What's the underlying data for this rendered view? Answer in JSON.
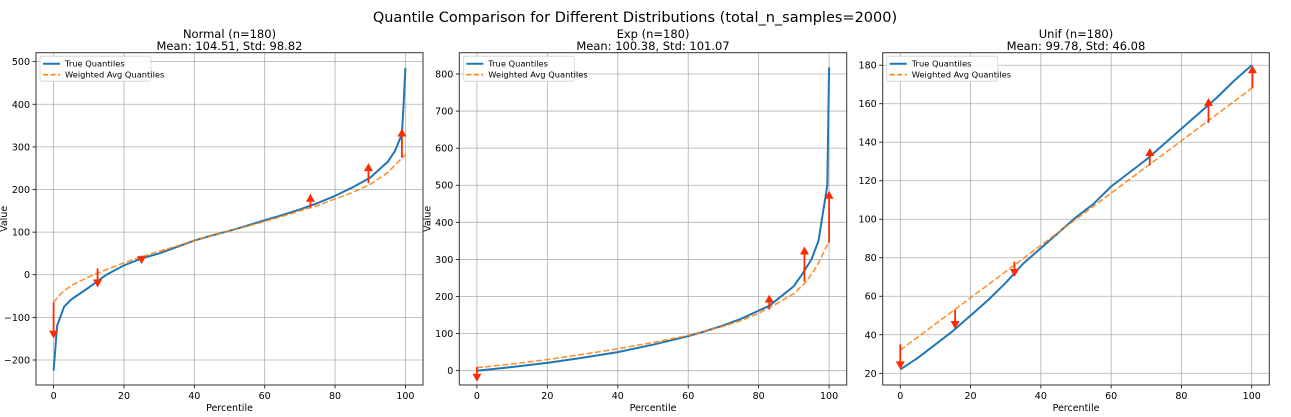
{
  "figure": {
    "suptitle": "Quantile Comparison for Different Distributions (total_n_samples=2000)"
  },
  "colors": {
    "true": "#1f77b4",
    "weighted": "#ff7f0e",
    "arrow": "#ff2a00",
    "grid": "#b0b0b0"
  },
  "chart_data": [
    {
      "type": "line",
      "title": "Normal (n=180)",
      "subtitle": "Mean: 104.51, Std: 98.82",
      "xlabel": "Percentile",
      "ylabel": "Value",
      "xlim": [
        -5,
        105
      ],
      "ylim": [
        -258.7,
        521
      ],
      "xticks": [
        0,
        20,
        40,
        60,
        80,
        100
      ],
      "yticks": [
        -200,
        -100,
        0,
        100,
        200,
        300,
        400,
        500
      ],
      "yticklabels": [
        "−200",
        "−100",
        "0",
        "100",
        "200",
        "300",
        "400",
        "500"
      ],
      "grid": true,
      "legend": "upper-left",
      "series": [
        {
          "name": "True Quantiles",
          "style": "solid",
          "x": [
            0,
            1,
            3,
            5,
            10,
            15,
            20,
            25,
            30,
            35,
            40,
            45,
            50,
            55,
            60,
            65,
            70,
            75,
            80,
            85,
            90,
            95,
            97,
            99,
            99.5,
            100
          ],
          "y": [
            -225,
            -120,
            -75,
            -58,
            -30,
            0,
            22,
            38,
            50,
            65,
            80,
            92,
            103,
            115,
            128,
            140,
            153,
            168,
            185,
            205,
            228,
            265,
            290,
            330,
            400,
            485
          ]
        },
        {
          "name": "Weighted Avg Quantiles",
          "style": "dashed",
          "x": [
            0,
            2,
            5,
            10,
            15,
            20,
            25,
            30,
            35,
            40,
            45,
            50,
            55,
            60,
            65,
            70,
            75,
            80,
            85,
            90,
            95,
            100
          ],
          "y": [
            -65,
            -45,
            -25,
            -5,
            12,
            28,
            42,
            55,
            67,
            80,
            92,
            103,
            114,
            125,
            137,
            150,
            162,
            178,
            193,
            212,
            240,
            282
          ]
        }
      ],
      "arrows": [
        {
          "x": 0,
          "from": -65,
          "to": -150
        },
        {
          "x": 12.5,
          "from": 15,
          "to": -30
        },
        {
          "x": 25,
          "from": 45,
          "to": 25
        },
        {
          "x": 73,
          "from": 158,
          "to": 190
        },
        {
          "x": 89.5,
          "from": 215,
          "to": 262
        },
        {
          "x": 99,
          "from": 275,
          "to": 343
        }
      ]
    },
    {
      "type": "line",
      "title": "Exp (n=180)",
      "subtitle": "Mean: 100.38, Std: 101.07",
      "xlabel": "Percentile",
      "ylabel": "Value",
      "xlim": [
        -5,
        105
      ],
      "ylim": [
        -38.6,
        857.4
      ],
      "xticks": [
        0,
        20,
        40,
        60,
        80,
        100
      ],
      "yticks": [
        0,
        100,
        200,
        300,
        400,
        500,
        600,
        700,
        800
      ],
      "yticklabels": [
        "0",
        "100",
        "200",
        "300",
        "400",
        "500",
        "600",
        "700",
        "800"
      ],
      "grid": true,
      "legend": "upper-left",
      "series": [
        {
          "name": "True Quantiles",
          "style": "solid",
          "x": [
            0,
            10,
            20,
            30,
            40,
            50,
            60,
            65,
            70,
            75,
            80,
            83,
            85,
            87,
            90,
            92,
            95,
            97,
            98,
            99,
            99.5,
            100
          ],
          "y": [
            0,
            10,
            21,
            35,
            50,
            70,
            93,
            107,
            122,
            140,
            162,
            175,
            190,
            205,
            228,
            255,
            300,
            350,
            410,
            470,
            500,
            818
          ]
        },
        {
          "name": "Weighted Avg Quantiles",
          "style": "dashed",
          "x": [
            0,
            10,
            20,
            30,
            40,
            50,
            60,
            70,
            75,
            80,
            85,
            90,
            93,
            95,
            97,
            99,
            100
          ],
          "y": [
            8,
            18,
            30,
            44,
            59,
            76,
            95,
            120,
            135,
            155,
            180,
            208,
            235,
            260,
            290,
            330,
            348
          ]
        }
      ],
      "arrows": [
        {
          "x": 0,
          "from": 10,
          "to": -30
        },
        {
          "x": 83,
          "from": 165,
          "to": 205
        },
        {
          "x": 93,
          "from": 240,
          "to": 335
        },
        {
          "x": 100,
          "from": 345,
          "to": 485
        }
      ]
    },
    {
      "type": "line",
      "title": "Unif (n=180)",
      "subtitle": "Mean: 99.78, Std: 46.08",
      "xlabel": "Percentile",
      "ylabel": "",
      "xlim": [
        -5,
        105
      ],
      "ylim": [
        13.9,
        186.5
      ],
      "xticks": [
        0,
        20,
        40,
        60,
        80,
        100
      ],
      "yticks": [
        20,
        40,
        60,
        80,
        100,
        120,
        140,
        160,
        180
      ],
      "yticklabels": [
        "20",
        "40",
        "60",
        "80",
        "100",
        "120",
        "140",
        "160",
        "180"
      ],
      "grid": true,
      "legend": "upper-left",
      "series": [
        {
          "name": "True Quantiles",
          "style": "solid",
          "x": [
            0,
            5,
            10,
            15,
            20,
            25,
            30,
            35,
            40,
            45,
            50,
            55,
            60,
            65,
            70,
            75,
            80,
            85,
            90,
            95,
            100
          ],
          "y": [
            22,
            28,
            35,
            42,
            50,
            58,
            67,
            77,
            85,
            93,
            101,
            108,
            117,
            124,
            131,
            139,
            147,
            155,
            163,
            172,
            180
          ]
        },
        {
          "name": "Weighted Avg Quantiles",
          "style": "dashed",
          "x": [
            0,
            25,
            50,
            75,
            100
          ],
          "y": [
            32,
            66,
            100,
            134,
            168
          ]
        }
      ],
      "arrows": [
        {
          "x": 0,
          "from": 35,
          "to": 22
        },
        {
          "x": 15.6,
          "from": 53,
          "to": 43
        },
        {
          "x": 32.5,
          "from": 78,
          "to": 70
        },
        {
          "x": 71,
          "from": 128,
          "to": 137
        },
        {
          "x": 87.7,
          "from": 150,
          "to": 163
        },
        {
          "x": 100.2,
          "from": 168,
          "to": 180
        }
      ]
    }
  ]
}
